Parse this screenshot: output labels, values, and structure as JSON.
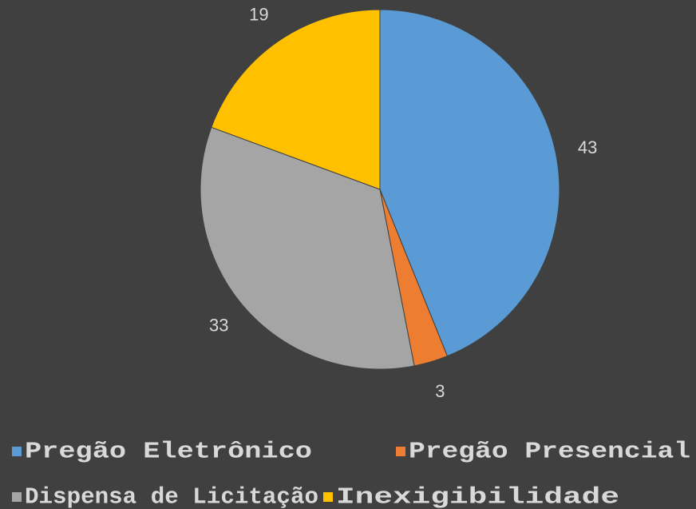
{
  "chart_data": {
    "type": "pie",
    "categories": [
      "Pregão Eletrônico",
      "Pregão Presencial",
      "Dispensa de Licitação",
      "Inexigibilidade"
    ],
    "values": [
      43,
      3,
      33,
      19
    ],
    "colors": [
      "#5b9bd5",
      "#ed7d31",
      "#a5a5a5",
      "#ffc000"
    ]
  }
}
